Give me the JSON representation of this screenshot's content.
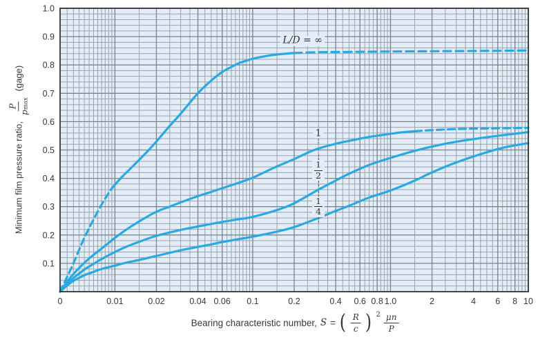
{
  "figure": {
    "colors": {
      "curve": "#29a9e1",
      "plot_bg": "#e2edf8",
      "grid_minor": "#9aa3ab",
      "grid_major": "#7b848d",
      "border": "#2f3437",
      "text": "#343a40"
    },
    "y_title": {
      "text": "Minimum film pressure ratio,",
      "frac_num": "P",
      "frac_den": "p",
      "frac_den_sub": "max",
      "suffix": "(gage)"
    },
    "x_title": {
      "text": "Bearing characteristic number,",
      "var": "S",
      "eq": "=",
      "paren_open": "(",
      "paren_num": "R",
      "paren_den": "c",
      "paren_close": ")",
      "exponent": "2",
      "frac_num": "μn",
      "frac_den": "P"
    }
  },
  "chart_data": {
    "type": "line",
    "title": "",
    "xlabel": "Bearing characteristic number, S = (R/c)^2 (μn/P)",
    "ylabel": "Minimum film pressure ratio, P/p_max (gage)",
    "x_scale": "log",
    "x_domain": [
      0.004,
      10
    ],
    "ylim": [
      0,
      1
    ],
    "grid": {
      "y_minor_step": 0.02,
      "y_major_step": 0.1,
      "x_minor_multiples": [
        1,
        1.5,
        2,
        2.5,
        3,
        3.5,
        4,
        4.5,
        5,
        5.5,
        6,
        6.5,
        7,
        7.5,
        8,
        8.5,
        9,
        9.5
      ],
      "x_decades": [
        -3,
        -2,
        -1,
        0,
        1
      ]
    },
    "x_ticks": [
      {
        "value": 0.004,
        "label": "0"
      },
      {
        "value": 0.01,
        "label": "0.01"
      },
      {
        "value": 0.02,
        "label": "0.02"
      },
      {
        "value": 0.04,
        "label": "0.04"
      },
      {
        "value": 0.06,
        "label": "0.06"
      },
      {
        "value": 0.1,
        "label": "0.1"
      },
      {
        "value": 0.2,
        "label": "0.2"
      },
      {
        "value": 0.4,
        "label": "0.4"
      },
      {
        "value": 0.6,
        "label": "0.6"
      },
      {
        "value": 0.8,
        "label": "0.8"
      },
      {
        "value": 1.0,
        "label": "1.0"
      },
      {
        "value": 2,
        "label": "2"
      },
      {
        "value": 4,
        "label": "4"
      },
      {
        "value": 6,
        "label": "6"
      },
      {
        "value": 8,
        "label": "8"
      },
      {
        "value": 10,
        "label": "10"
      }
    ],
    "y_ticks": [
      {
        "value": 0.1,
        "label": "0.1"
      },
      {
        "value": 0.2,
        "label": "0.2"
      },
      {
        "value": 0.3,
        "label": "0.3"
      },
      {
        "value": 0.4,
        "label": "0.4"
      },
      {
        "value": 0.5,
        "label": "0.5"
      },
      {
        "value": 0.6,
        "label": "0.6"
      },
      {
        "value": 0.7,
        "label": "0.7"
      },
      {
        "value": 0.8,
        "label": "0.8"
      },
      {
        "value": 0.9,
        "label": "0.9"
      },
      {
        "value": 1.0,
        "label": "1.0"
      }
    ],
    "series": [
      {
        "name": "L/D = ∞",
        "segments": [
          {
            "style": "dashed",
            "dash": "9 6",
            "points": [
              [
                0.004,
                0
              ],
              [
                0.0045,
                0.052
              ],
              [
                0.005,
                0.1
              ],
              [
                0.0055,
                0.148
              ],
              [
                0.006,
                0.19
              ],
              [
                0.007,
                0.255
              ],
              [
                0.008,
                0.307
              ],
              [
                0.009,
                0.348
              ],
              [
                0.0095,
                0.365
              ]
            ]
          },
          {
            "style": "solid",
            "points": [
              [
                0.0095,
                0.365
              ],
              [
                0.011,
                0.4
              ],
              [
                0.013,
                0.435
              ],
              [
                0.015,
                0.465
              ],
              [
                0.018,
                0.505
              ],
              [
                0.02,
                0.53
              ],
              [
                0.025,
                0.585
              ],
              [
                0.03,
                0.628
              ],
              [
                0.04,
                0.7
              ],
              [
                0.05,
                0.745
              ],
              [
                0.06,
                0.775
              ],
              [
                0.07,
                0.793
              ],
              [
                0.08,
                0.807
              ],
              [
                0.09,
                0.815
              ],
              [
                0.1,
                0.822
              ],
              [
                0.12,
                0.83
              ],
              [
                0.15,
                0.837
              ],
              [
                0.2,
                0.842
              ]
            ]
          },
          {
            "style": "dashed",
            "dash": "11 7",
            "points": [
              [
                0.2,
                0.842
              ],
              [
                0.3,
                0.845
              ],
              [
                0.5,
                0.846
              ],
              [
                0.8,
                0.847
              ],
              [
                1.5,
                0.848
              ],
              [
                3,
                0.849
              ],
              [
                6,
                0.85
              ],
              [
                10,
                0.851
              ]
            ]
          }
        ]
      },
      {
        "name": "1",
        "segments": [
          {
            "style": "solid",
            "points": [
              [
                0.004,
                0
              ],
              [
                0.0045,
                0.035
              ],
              [
                0.005,
                0.062
              ],
              [
                0.006,
                0.102
              ],
              [
                0.007,
                0.13
              ],
              [
                0.008,
                0.152
              ],
              [
                0.009,
                0.172
              ],
              [
                0.01,
                0.19
              ],
              [
                0.012,
                0.218
              ],
              [
                0.015,
                0.248
              ],
              [
                0.02,
                0.282
              ],
              [
                0.025,
                0.3
              ],
              [
                0.03,
                0.315
              ],
              [
                0.04,
                0.337
              ],
              [
                0.05,
                0.352
              ],
              [
                0.06,
                0.365
              ],
              [
                0.08,
                0.385
              ],
              [
                0.1,
                0.402
              ],
              [
                0.13,
                0.428
              ],
              [
                0.15,
                0.442
              ],
              [
                0.2,
                0.468
              ],
              [
                0.25,
                0.49
              ],
              [
                0.3,
                0.505
              ],
              [
                0.4,
                0.522
              ],
              [
                0.5,
                0.532
              ],
              [
                0.7,
                0.546
              ],
              [
                1,
                0.557
              ],
              [
                1.2,
                0.562
              ],
              [
                1.5,
                0.566
              ]
            ]
          },
          {
            "style": "dashed",
            "dash": "10 6",
            "points": [
              [
                1.5,
                0.566
              ],
              [
                2,
                0.57
              ],
              [
                3,
                0.574
              ],
              [
                5,
                0.576
              ],
              [
                7,
                0.577
              ],
              [
                10,
                0.578
              ]
            ]
          }
        ]
      },
      {
        "name": "1/2",
        "segments": [
          {
            "style": "solid",
            "points": [
              [
                0.004,
                0
              ],
              [
                0.0045,
                0.028
              ],
              [
                0.005,
                0.048
              ],
              [
                0.006,
                0.078
              ],
              [
                0.007,
                0.098
              ],
              [
                0.008,
                0.115
              ],
              [
                0.01,
                0.14
              ],
              [
                0.012,
                0.158
              ],
              [
                0.015,
                0.176
              ],
              [
                0.02,
                0.197
              ],
              [
                0.03,
                0.218
              ],
              [
                0.04,
                0.23
              ],
              [
                0.05,
                0.239
              ],
              [
                0.06,
                0.246
              ],
              [
                0.08,
                0.256
              ],
              [
                0.1,
                0.264
              ],
              [
                0.15,
                0.288
              ],
              [
                0.2,
                0.312
              ],
              [
                0.3,
                0.36
              ],
              [
                0.4,
                0.392
              ],
              [
                0.5,
                0.416
              ],
              [
                0.7,
                0.447
              ],
              [
                1,
                0.472
              ],
              [
                1.5,
                0.497
              ],
              [
                2,
                0.512
              ],
              [
                3,
                0.529
              ],
              [
                5,
                0.545
              ],
              [
                7,
                0.554
              ],
              [
                10,
                0.563
              ]
            ]
          }
        ]
      },
      {
        "name": "1/4",
        "segments": [
          {
            "style": "solid",
            "points": [
              [
                0.004,
                0
              ],
              [
                0.0045,
                0.022
              ],
              [
                0.005,
                0.038
              ],
              [
                0.006,
                0.058
              ],
              [
                0.007,
                0.07
              ],
              [
                0.008,
                0.08
              ],
              [
                0.01,
                0.092
              ],
              [
                0.012,
                0.102
              ],
              [
                0.015,
                0.112
              ],
              [
                0.02,
                0.126
              ],
              [
                0.03,
                0.146
              ],
              [
                0.04,
                0.158
              ],
              [
                0.05,
                0.167
              ],
              [
                0.06,
                0.175
              ],
              [
                0.08,
                0.186
              ],
              [
                0.1,
                0.194
              ],
              [
                0.15,
                0.212
              ],
              [
                0.2,
                0.228
              ],
              [
                0.3,
                0.26
              ],
              [
                0.4,
                0.285
              ],
              [
                0.5,
                0.303
              ],
              [
                0.7,
                0.332
              ],
              [
                1,
                0.357
              ],
              [
                1.5,
                0.392
              ],
              [
                2,
                0.421
              ],
              [
                3,
                0.456
              ],
              [
                5,
                0.492
              ],
              [
                7,
                0.511
              ],
              [
                10,
                0.524
              ]
            ]
          }
        ]
      }
    ],
    "curve_labels": [
      {
        "id": "lod-inf",
        "kind": "text",
        "prefix": "L/D",
        "eq": " = ",
        "value": "∞",
        "S": 0.23,
        "v": 0.886,
        "leader_above": false,
        "leader_below": false
      },
      {
        "id": "lod-1",
        "kind": "text",
        "value": "1",
        "S": 0.3,
        "v": 0.548,
        "leader_above": false,
        "leader_below": true
      },
      {
        "id": "lod-half",
        "kind": "fraction",
        "num": "1",
        "den": "2",
        "S": 0.3,
        "v": 0.428,
        "leader_above": true,
        "leader_below": true
      },
      {
        "id": "lod-quarter",
        "kind": "fraction",
        "num": "1",
        "den": "4",
        "S": 0.3,
        "v": 0.3,
        "leader_above": true,
        "leader_below": true
      }
    ]
  }
}
